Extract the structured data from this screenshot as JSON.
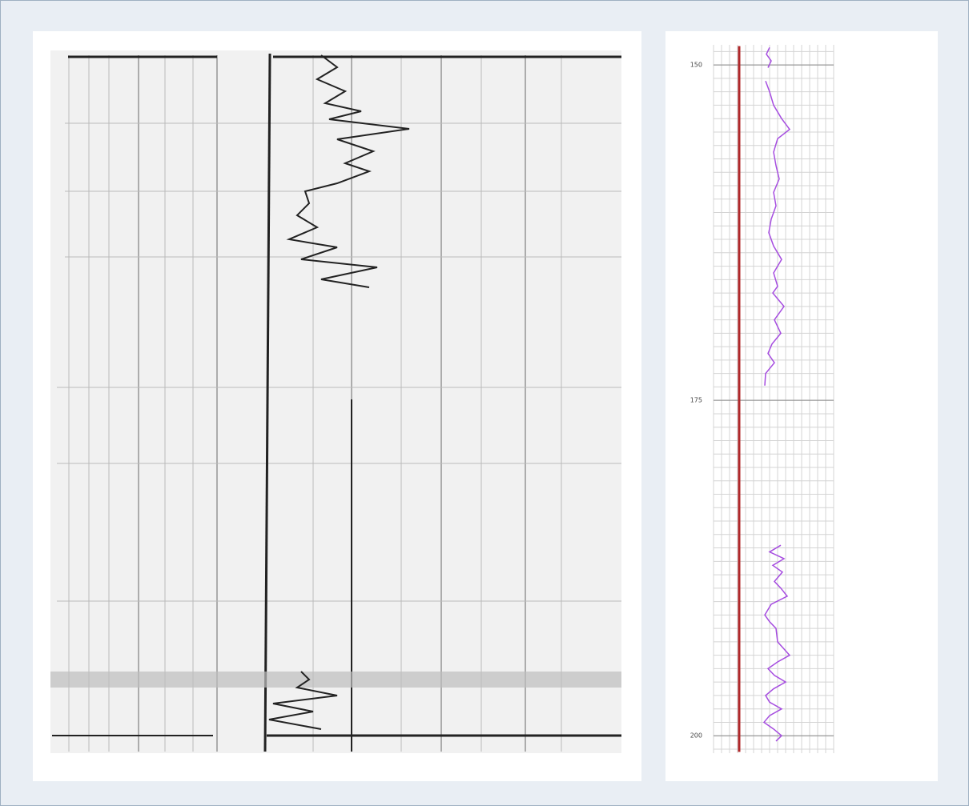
{
  "chart_data": {
    "type": "line",
    "ylim": [
      148.5,
      201.3
    ],
    "inverted": true,
    "yticks": [
      150,
      175,
      200
    ],
    "xlim": [
      0,
      15
    ],
    "grid": true,
    "series": [
      {
        "color": "#b0282a",
        "y": [
          148.6,
          201.2
        ],
        "x": [
          3.2,
          3.2
        ]
      },
      {
        "color": "#a64de0",
        "y": [
          148.7,
          149.2,
          149.7,
          150.2,
          null,
          151.2,
          152,
          153,
          154,
          154.8,
          155.5,
          156.5,
          157.5,
          158.5,
          159.5,
          160.5,
          161.5,
          162.5,
          163.5,
          164.5,
          165.5,
          166.5,
          167,
          168,
          169,
          170,
          170.8,
          171.5,
          172.2,
          173,
          173.9,
          null,
          185.8,
          186.3,
          186.8,
          187.3,
          187.8,
          188.5,
          189,
          189.6,
          190.2,
          191,
          191.5,
          192,
          193,
          194,
          194.5,
          195,
          195.5,
          196,
          196.5,
          197,
          197.5,
          198,
          198.5,
          199,
          199.5,
          200,
          200.4
        ],
        "x": [
          7.0,
          6.6,
          7.2,
          6.8,
          null,
          6.5,
          7.0,
          7.5,
          8.5,
          9.5,
          8.0,
          7.5,
          7.8,
          8.2,
          7.5,
          7.8,
          7.2,
          6.9,
          7.5,
          8.5,
          7.5,
          8.0,
          7.4,
          8.8,
          7.6,
          8.4,
          7.3,
          6.8,
          7.6,
          6.5,
          6.4,
          null,
          8.4,
          7.0,
          8.8,
          7.4,
          8.6,
          7.6,
          8.4,
          9.2,
          7.2,
          6.4,
          7.0,
          7.8,
          8.0,
          9.5,
          8.0,
          6.8,
          7.6,
          9.0,
          7.5,
          6.5,
          7.0,
          8.5,
          7.0,
          6.3,
          7.5,
          8.5,
          7.8
        ]
      }
    ]
  }
}
